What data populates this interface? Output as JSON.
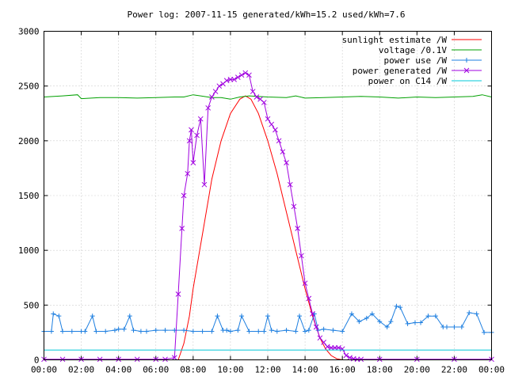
{
  "chart_data": {
    "type": "line",
    "title": "Power log: 2007-11-15 generated/kWh=15.2 used/kWh=7.6",
    "xlabel": "",
    "ylabel": "",
    "xlim": [
      0,
      24
    ],
    "ylim": [
      0,
      3000
    ],
    "x_tick_labels": [
      "00:00",
      "02:00",
      "04:00",
      "06:00",
      "08:00",
      "10:00",
      "12:00",
      "14:00",
      "16:00",
      "18:00",
      "20:00",
      "22:00",
      "00:00"
    ],
    "y_ticks": [
      0,
      500,
      1000,
      1500,
      2000,
      2500,
      3000
    ],
    "grid": true,
    "legend_position": "top-right",
    "series": [
      {
        "name": "sunlight estimate /W",
        "color": "#ff0000",
        "marker": "none",
        "x": [
          7.2,
          7.5,
          7.8,
          8.0,
          8.3,
          8.6,
          9.0,
          9.5,
          10.0,
          10.5,
          10.8,
          11.1,
          11.5,
          12.0,
          12.5,
          13.0,
          13.5,
          14.0,
          14.4,
          14.8,
          15.1,
          15.4,
          15.7,
          16.0
        ],
        "y": [
          0,
          150,
          400,
          650,
          950,
          1250,
          1650,
          2000,
          2250,
          2380,
          2410,
          2380,
          2250,
          2000,
          1700,
          1350,
          1000,
          650,
          400,
          200,
          100,
          40,
          10,
          0
        ]
      },
      {
        "name": "voltage /0.1V",
        "color": "#00a000",
        "marker": "none",
        "x": [
          0,
          1,
          1.8,
          2.0,
          3,
          4,
          5,
          6,
          7,
          7.5,
          8,
          9,
          9.5,
          10,
          10.5,
          11,
          12,
          13,
          13.5,
          14,
          15,
          16,
          17,
          18,
          19,
          20,
          21,
          22,
          23,
          23.5,
          24
        ],
        "y": [
          2400,
          2410,
          2420,
          2385,
          2395,
          2395,
          2390,
          2395,
          2400,
          2400,
          2420,
          2395,
          2395,
          2380,
          2400,
          2410,
          2400,
          2395,
          2410,
          2390,
          2395,
          2400,
          2405,
          2400,
          2390,
          2400,
          2395,
          2400,
          2405,
          2420,
          2400
        ]
      },
      {
        "name": "power use /W",
        "color": "#1e7fe0",
        "marker": "plus",
        "x": [
          0.0,
          0.4,
          0.5,
          0.8,
          1.0,
          1.5,
          2.0,
          2.2,
          2.6,
          2.8,
          3.3,
          3.8,
          4.0,
          4.3,
          4.6,
          4.8,
          5.2,
          5.5,
          6.0,
          6.5,
          7.0,
          7.5,
          8.0,
          8.5,
          9.0,
          9.3,
          9.6,
          9.8,
          10.0,
          10.4,
          10.6,
          11.0,
          11.5,
          11.8,
          12.0,
          12.2,
          12.5,
          13.0,
          13.5,
          13.7,
          14.0,
          14.2,
          14.5,
          14.7,
          15.0,
          15.5,
          16.0,
          16.5,
          16.9,
          17.3,
          17.6,
          18.0,
          18.4,
          18.6,
          18.9,
          19.1,
          19.5,
          19.9,
          20.2,
          20.6,
          21.0,
          21.4,
          21.6,
          22.0,
          22.4,
          22.8,
          23.2,
          23.6,
          24.0
        ],
        "y": [
          260,
          260,
          420,
          400,
          260,
          260,
          260,
          260,
          400,
          260,
          260,
          270,
          280,
          280,
          400,
          270,
          260,
          260,
          270,
          270,
          270,
          270,
          260,
          260,
          260,
          400,
          270,
          270,
          260,
          270,
          400,
          260,
          260,
          260,
          400,
          270,
          260,
          270,
          260,
          400,
          260,
          270,
          420,
          270,
          280,
          270,
          260,
          420,
          350,
          380,
          420,
          350,
          300,
          350,
          490,
          480,
          330,
          340,
          340,
          400,
          400,
          300,
          300,
          300,
          300,
          430,
          420,
          250,
          250
        ]
      },
      {
        "name": "power generated /W",
        "color": "#a000e0",
        "marker": "x",
        "x": [
          0.0,
          1.0,
          2.0,
          3.0,
          4.0,
          5.0,
          6.0,
          6.5,
          7.0,
          7.2,
          7.4,
          7.5,
          7.7,
          7.8,
          7.9,
          8.0,
          8.2,
          8.4,
          8.6,
          8.8,
          9.0,
          9.2,
          9.4,
          9.6,
          9.8,
          10.0,
          10.2,
          10.4,
          10.6,
          10.8,
          11.0,
          11.2,
          11.4,
          11.6,
          11.8,
          12.0,
          12.2,
          12.4,
          12.6,
          12.8,
          13.0,
          13.2,
          13.4,
          13.6,
          13.8,
          14.0,
          14.2,
          14.4,
          14.6,
          14.8,
          15.0,
          15.2,
          15.4,
          15.6,
          15.8,
          16.0,
          16.2,
          16.4,
          16.6,
          16.8,
          17.0,
          18.0,
          20.0,
          22.0,
          24.0
        ],
        "y": [
          5,
          5,
          5,
          5,
          5,
          5,
          5,
          5,
          20,
          600,
          1200,
          1500,
          1700,
          2000,
          2100,
          1800,
          2050,
          2200,
          1600,
          2300,
          2400,
          2450,
          2500,
          2520,
          2550,
          2560,
          2560,
          2580,
          2600,
          2620,
          2600,
          2450,
          2400,
          2380,
          2350,
          2200,
          2150,
          2100,
          2000,
          1900,
          1800,
          1600,
          1400,
          1200,
          950,
          700,
          560,
          420,
          300,
          200,
          160,
          120,
          110,
          110,
          110,
          100,
          40,
          20,
          10,
          5,
          5,
          5,
          5,
          5,
          5
        ]
      },
      {
        "name": "power on C14 /W",
        "color": "#00c8d8",
        "marker": "none",
        "x": [
          0,
          24
        ],
        "y": [
          90,
          90
        ]
      }
    ]
  }
}
